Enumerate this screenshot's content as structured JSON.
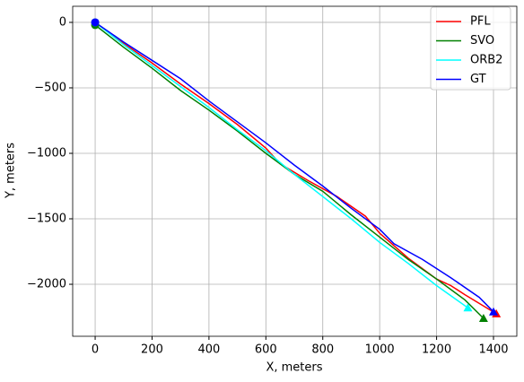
{
  "chart_data": {
    "type": "line",
    "x_label": "X, meters",
    "y_label": "Y, meters",
    "xlim": [
      -79,
      1482
    ],
    "ylim": [
      -2397,
      123
    ],
    "xticks": [
      0,
      200,
      400,
      600,
      800,
      1000,
      1200,
      1400
    ],
    "yticks": [
      {
        "value": -2000,
        "label": "−2000"
      },
      {
        "value": -1500,
        "label": "−1500"
      },
      {
        "value": -1000,
        "label": "−1000"
      },
      {
        "value": -500,
        "label": "−500"
      },
      0
    ],
    "grid": true,
    "legend": "upper right",
    "start_marker": "circle",
    "end_marker": "triangle",
    "series": [
      {
        "name": "PFL",
        "color": "#ff0000",
        "x": [
          0,
          100,
          200,
          300,
          400,
          500,
          600,
          650,
          750,
          850,
          950,
          1000,
          1100,
          1200,
          1250,
          1300,
          1410
        ],
        "values": [
          0,
          -160,
          -310,
          -470,
          -620,
          -780,
          -960,
          -1080,
          -1210,
          -1330,
          -1480,
          -1610,
          -1800,
          -1960,
          -2010,
          -2080,
          -2225
        ]
      },
      {
        "name": "SVO",
        "color": "#008000",
        "x": [
          0,
          100,
          200,
          300,
          400,
          500,
          600,
          700,
          800,
          900,
          1000,
          1100,
          1200,
          1300,
          1365
        ],
        "values": [
          -20,
          -190,
          -350,
          -520,
          -670,
          -830,
          -1000,
          -1160,
          -1290,
          -1470,
          -1640,
          -1810,
          -1960,
          -2120,
          -2260
        ]
      },
      {
        "name": "ORB2",
        "color": "#00ffff",
        "x": [
          0,
          100,
          200,
          300,
          400,
          500,
          600,
          700,
          800,
          900,
          1000,
          1100,
          1200,
          1310
        ],
        "values": [
          0,
          -170,
          -330,
          -490,
          -650,
          -820,
          -980,
          -1160,
          -1330,
          -1500,
          -1680,
          -1840,
          -2010,
          -2180
        ]
      },
      {
        "name": "GT",
        "color": "#0000ff",
        "x": [
          0,
          100,
          200,
          300,
          400,
          500,
          600,
          700,
          800,
          900,
          1000,
          1050,
          1150,
          1250,
          1350,
          1400
        ],
        "values": [
          0,
          -150,
          -290,
          -430,
          -600,
          -760,
          -920,
          -1090,
          -1250,
          -1420,
          -1580,
          -1690,
          -1810,
          -1950,
          -2100,
          -2210
        ]
      }
    ]
  }
}
